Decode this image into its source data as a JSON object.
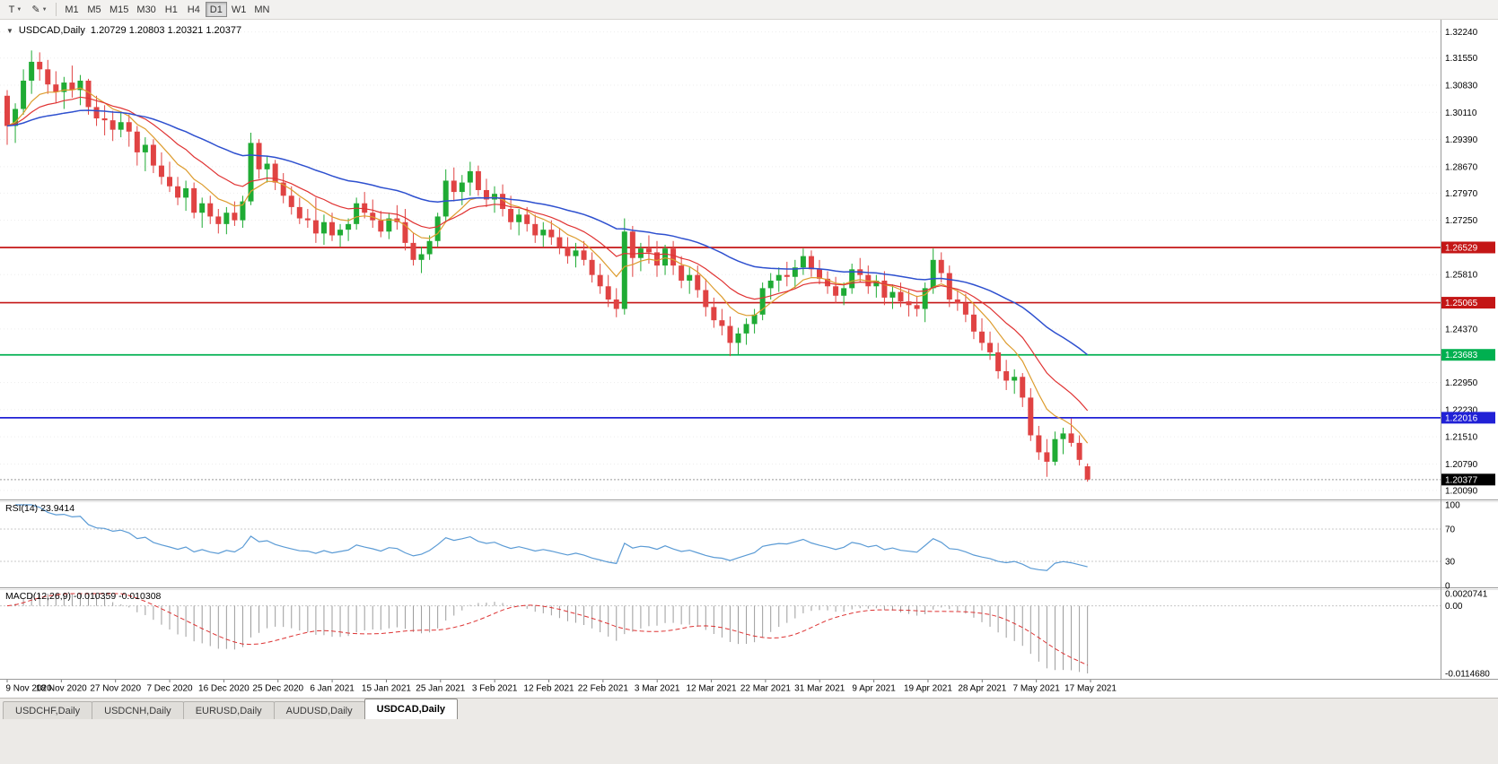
{
  "toolbar": {
    "tools": [
      {
        "name": "chart-type",
        "glyph": "T"
      },
      {
        "name": "drawing-tools",
        "glyph": "✎"
      }
    ],
    "timeframes": [
      "M1",
      "M5",
      "M15",
      "M30",
      "H1",
      "H4",
      "D1",
      "W1",
      "MN"
    ],
    "active_timeframe": "D1"
  },
  "chart_header": {
    "collapse_icon": "▼",
    "symbol_title": "USDCAD,Daily",
    "ohlc": "1.20729 1.20803 1.20321 1.20377"
  },
  "rsi_panel": {
    "label": "RSI(14)",
    "value": "23.9414",
    "period": 14,
    "levels": [
      70,
      30
    ],
    "axis_labels": [
      "100",
      "70",
      "30",
      "0"
    ],
    "line_color": "#5b9bd5"
  },
  "macd_panel": {
    "label": "MACD(12,26,9)",
    "values": "-0.010359 -0.010308",
    "params": [
      12,
      26,
      9
    ],
    "axis_top": "0.0020741",
    "axis_zero": "0.00",
    "axis_bottom": "-0.0114680",
    "histogram_color": "#9c9c9c",
    "signal_color": "#dd3333"
  },
  "price_axis": {
    "ticks": [
      {
        "label": "1.32240",
        "price": 1.3224
      },
      {
        "label": "1.31550",
        "price": 1.3155
      },
      {
        "label": "1.30830",
        "price": 1.3083
      },
      {
        "label": "1.30110",
        "price": 1.3011
      },
      {
        "label": "1.29390",
        "price": 1.2939
      },
      {
        "label": "1.28670",
        "price": 1.2867
      },
      {
        "label": "1.27970",
        "price": 1.2797
      },
      {
        "label": "1.27250",
        "price": 1.2725
      },
      {
        "label": "1.25810",
        "price": 1.2581
      },
      {
        "label": "1.24370",
        "price": 1.2437
      },
      {
        "label": "1.22950",
        "price": 1.2295
      },
      {
        "label": "1.22230",
        "price": 1.2223
      },
      {
        "label": "1.21510",
        "price": 1.2151
      },
      {
        "label": "1.20790",
        "price": 1.2079
      },
      {
        "label": "1.20090",
        "price": 1.2009
      }
    ],
    "badges": [
      {
        "label": "1.26529",
        "price": 1.26529,
        "color": "#c41616"
      },
      {
        "label": "1.25065",
        "price": 1.25065,
        "color": "#c41616"
      },
      {
        "label": "1.23683",
        "price": 1.23683,
        "color": "#00b050"
      },
      {
        "label": "1.22016",
        "price": 1.22016,
        "color": "#2121d6"
      }
    ],
    "current": {
      "label": "1.20377",
      "price": 1.20377,
      "color": "#000000"
    }
  },
  "date_axis": {
    "labels": [
      "9 Nov 2020",
      "18 Nov 2020",
      "27 Nov 2020",
      "7 Dec 2020",
      "16 Dec 2020",
      "25 Dec 2020",
      "6 Jan 2021",
      "15 Jan 2021",
      "25 Jan 2021",
      "3 Feb 2021",
      "12 Feb 2021",
      "22 Feb 2021",
      "3 Mar 2021",
      "12 Mar 2021",
      "22 Mar 2021",
      "31 Mar 2021",
      "9 Apr 2021",
      "19 Apr 2021",
      "28 Apr 2021",
      "7 May 2021",
      "17 May 2021"
    ]
  },
  "tab_bar": {
    "tabs": [
      {
        "label": "USDCHF,Daily",
        "active": false
      },
      {
        "label": "USDCNH,Daily",
        "active": false
      },
      {
        "label": "EURUSD,Daily",
        "active": false
      },
      {
        "label": "AUDUSD,Daily",
        "active": false
      },
      {
        "label": "USDCAD,Daily",
        "active": true
      }
    ]
  },
  "chart_data": {
    "type": "candlestick",
    "symbol": "USDCAD",
    "timeframe": "Daily",
    "title": "USDCAD,Daily",
    "ohlc_display": {
      "open": "1.20729",
      "high": "1.20803",
      "low": "1.20321",
      "close": "1.20377"
    },
    "ylim": [
      1.1985,
      1.3247
    ],
    "colors": {
      "up": "#1fab34",
      "down": "#e04343"
    },
    "current_price": 1.20377,
    "hlines": [
      {
        "price": 1.26529,
        "color": "#c41616"
      },
      {
        "price": 1.25065,
        "color": "#c41616"
      },
      {
        "price": 1.23683,
        "color": "#00b050"
      },
      {
        "price": 1.22016,
        "color": "#2121d6"
      }
    ],
    "moving_averages": [
      {
        "name": "ma-fast-orange",
        "period": 8,
        "color": "#dd9c2e",
        "width": 1.2
      },
      {
        "name": "ma-mid-red",
        "period": 16,
        "color": "#e03333",
        "width": 1.2
      },
      {
        "name": "ma-slow-blue",
        "period": 40,
        "color": "#2e50cf",
        "width": 1.5
      }
    ],
    "candles": [
      [
        1.3055,
        1.307,
        1.2925,
        1.2975
      ],
      [
        1.2975,
        1.3035,
        1.293,
        1.302
      ],
      [
        1.302,
        1.3125,
        1.3005,
        1.3095
      ],
      [
        1.3095,
        1.3175,
        1.306,
        1.3145
      ],
      [
        1.3145,
        1.317,
        1.3095,
        1.3125
      ],
      [
        1.3125,
        1.315,
        1.306,
        1.3085
      ],
      [
        1.3085,
        1.312,
        1.3035,
        1.3065
      ],
      [
        1.3065,
        1.3105,
        1.302,
        1.309
      ],
      [
        1.309,
        1.3135,
        1.305,
        1.307
      ],
      [
        1.307,
        1.311,
        1.303,
        1.3095
      ],
      [
        1.3095,
        1.31,
        1.3005,
        1.3025
      ],
      [
        1.3025,
        1.3055,
        1.2975,
        1.2995
      ],
      [
        1.2995,
        1.303,
        1.295,
        1.299
      ],
      [
        1.299,
        1.3015,
        1.2935,
        1.2965
      ],
      [
        1.2965,
        1.301,
        1.2945,
        1.2985
      ],
      [
        1.2985,
        1.3005,
        1.292,
        1.296
      ],
      [
        1.296,
        1.2975,
        1.287,
        1.2905
      ],
      [
        1.2905,
        1.2945,
        1.2855,
        1.2925
      ],
      [
        1.2925,
        1.294,
        1.285,
        1.287
      ],
      [
        1.287,
        1.2905,
        1.282,
        1.284
      ],
      [
        1.284,
        1.288,
        1.28,
        1.2815
      ],
      [
        1.2815,
        1.284,
        1.2765,
        1.2785
      ],
      [
        1.2785,
        1.283,
        1.275,
        1.281
      ],
      [
        1.281,
        1.2825,
        1.273,
        1.2745
      ],
      [
        1.2745,
        1.2785,
        1.2705,
        1.277
      ],
      [
        1.277,
        1.279,
        1.2715,
        1.2735
      ],
      [
        1.2735,
        1.2755,
        1.269,
        1.2715
      ],
      [
        1.2715,
        1.276,
        1.2688,
        1.2745
      ],
      [
        1.2745,
        1.2775,
        1.271,
        1.2725
      ],
      [
        1.2725,
        1.279,
        1.2705,
        1.2775
      ],
      [
        1.2775,
        1.2957,
        1.2765,
        1.293
      ],
      [
        1.293,
        1.294,
        1.2835,
        1.286
      ],
      [
        1.286,
        1.2895,
        1.2825,
        1.2875
      ],
      [
        1.2875,
        1.2885,
        1.2805,
        1.2825
      ],
      [
        1.2825,
        1.285,
        1.277,
        1.279
      ],
      [
        1.279,
        1.2815,
        1.274,
        1.276
      ],
      [
        1.276,
        1.2785,
        1.2715,
        1.273
      ],
      [
        1.273,
        1.2755,
        1.2705,
        1.2725
      ],
      [
        1.2725,
        1.2785,
        1.2665,
        1.269
      ],
      [
        1.269,
        1.274,
        1.266,
        1.272
      ],
      [
        1.272,
        1.2745,
        1.267,
        1.2685
      ],
      [
        1.2685,
        1.2715,
        1.2655,
        1.27
      ],
      [
        1.27,
        1.273,
        1.267,
        1.2715
      ],
      [
        1.2715,
        1.2785,
        1.27,
        1.277
      ],
      [
        1.277,
        1.28,
        1.273,
        1.2745
      ],
      [
        1.2745,
        1.278,
        1.2705,
        1.2725
      ],
      [
        1.2725,
        1.275,
        1.268,
        1.2695
      ],
      [
        1.2695,
        1.2745,
        1.2675,
        1.273
      ],
      [
        1.273,
        1.2765,
        1.27,
        1.272
      ],
      [
        1.272,
        1.2755,
        1.2645,
        1.2665
      ],
      [
        1.2665,
        1.269,
        1.2605,
        1.262
      ],
      [
        1.262,
        1.2655,
        1.2585,
        1.2635
      ],
      [
        1.2635,
        1.2685,
        1.262,
        1.267
      ],
      [
        1.267,
        1.2745,
        1.2655,
        1.2735
      ],
      [
        1.2735,
        1.286,
        1.272,
        1.283
      ],
      [
        1.283,
        1.2865,
        1.2775,
        1.28
      ],
      [
        1.28,
        1.2845,
        1.2765,
        1.2825
      ],
      [
        1.2825,
        1.288,
        1.279,
        1.2855
      ],
      [
        1.2855,
        1.287,
        1.279,
        1.2805
      ],
      [
        1.2805,
        1.2835,
        1.276,
        1.278
      ],
      [
        1.278,
        1.2815,
        1.2745,
        1.2795
      ],
      [
        1.2795,
        1.282,
        1.2735,
        1.2755
      ],
      [
        1.2755,
        1.279,
        1.27,
        1.272
      ],
      [
        1.272,
        1.2755,
        1.2685,
        1.274
      ],
      [
        1.274,
        1.276,
        1.2695,
        1.2715
      ],
      [
        1.2715,
        1.274,
        1.2665,
        1.2685
      ],
      [
        1.2685,
        1.272,
        1.2655,
        1.27
      ],
      [
        1.27,
        1.2725,
        1.266,
        1.268
      ],
      [
        1.268,
        1.2705,
        1.2635,
        1.2655
      ],
      [
        1.2655,
        1.268,
        1.261,
        1.263
      ],
      [
        1.263,
        1.2665,
        1.26,
        1.2645
      ],
      [
        1.2645,
        1.267,
        1.2605,
        1.262
      ],
      [
        1.262,
        1.264,
        1.256,
        1.258
      ],
      [
        1.258,
        1.261,
        1.253,
        1.255
      ],
      [
        1.255,
        1.258,
        1.2495,
        1.2515
      ],
      [
        1.2515,
        1.2545,
        1.2468,
        1.249
      ],
      [
        1.249,
        1.273,
        1.2475,
        1.2695
      ],
      [
        1.2695,
        1.271,
        1.2575,
        1.2625
      ],
      [
        1.2625,
        1.2665,
        1.259,
        1.265
      ],
      [
        1.265,
        1.2685,
        1.261,
        1.264
      ],
      [
        1.264,
        1.267,
        1.2575,
        1.2605
      ],
      [
        1.2605,
        1.266,
        1.258,
        1.265
      ],
      [
        1.265,
        1.267,
        1.258,
        1.2605
      ],
      [
        1.2605,
        1.263,
        1.2545,
        1.2565
      ],
      [
        1.2565,
        1.26,
        1.253,
        1.258
      ],
      [
        1.258,
        1.2605,
        1.252,
        1.254
      ],
      [
        1.254,
        1.257,
        1.247,
        1.2495
      ],
      [
        1.2495,
        1.252,
        1.244,
        1.246
      ],
      [
        1.246,
        1.249,
        1.242,
        1.2445
      ],
      [
        1.2445,
        1.247,
        1.2365,
        1.24
      ],
      [
        1.24,
        1.244,
        1.237,
        1.2425
      ],
      [
        1.2425,
        1.2465,
        1.2395,
        1.245
      ],
      [
        1.245,
        1.249,
        1.2425,
        1.2475
      ],
      [
        1.2475,
        1.256,
        1.246,
        1.2545
      ],
      [
        1.2545,
        1.2585,
        1.2515,
        1.2565
      ],
      [
        1.2565,
        1.26,
        1.2535,
        1.258
      ],
      [
        1.258,
        1.2615,
        1.255,
        1.2575
      ],
      [
        1.2575,
        1.262,
        1.2545,
        1.26
      ],
      [
        1.26,
        1.265,
        1.258,
        1.263
      ],
      [
        1.263,
        1.2645,
        1.2575,
        1.2595
      ],
      [
        1.2595,
        1.262,
        1.2555,
        1.257
      ],
      [
        1.257,
        1.259,
        1.253,
        1.255
      ],
      [
        1.255,
        1.2575,
        1.2505,
        1.2525
      ],
      [
        1.2525,
        1.256,
        1.25,
        1.2545
      ],
      [
        1.2545,
        1.261,
        1.253,
        1.2595
      ],
      [
        1.2595,
        1.2625,
        1.256,
        1.258
      ],
      [
        1.258,
        1.2605,
        1.253,
        1.255
      ],
      [
        1.255,
        1.258,
        1.252,
        1.2565
      ],
      [
        1.2565,
        1.259,
        1.25,
        1.252
      ],
      [
        1.252,
        1.2555,
        1.249,
        1.2535
      ],
      [
        1.2535,
        1.256,
        1.2495,
        1.251
      ],
      [
        1.251,
        1.254,
        1.247,
        1.25
      ],
      [
        1.25,
        1.2525,
        1.247,
        1.249
      ],
      [
        1.249,
        1.256,
        1.2455,
        1.2545
      ],
      [
        1.2545,
        1.265,
        1.253,
        1.262
      ],
      [
        1.262,
        1.264,
        1.256,
        1.2585
      ],
      [
        1.2585,
        1.2605,
        1.2495,
        1.2515
      ],
      [
        1.2515,
        1.254,
        1.2485,
        1.2505
      ],
      [
        1.2505,
        1.253,
        1.2455,
        1.2475
      ],
      [
        1.2475,
        1.2505,
        1.241,
        1.243
      ],
      [
        1.243,
        1.2465,
        1.238,
        1.24
      ],
      [
        1.24,
        1.243,
        1.2355,
        1.2375
      ],
      [
        1.2375,
        1.24,
        1.2305,
        1.2325
      ],
      [
        1.2325,
        1.2355,
        1.2275,
        1.23
      ],
      [
        1.23,
        1.233,
        1.2265,
        1.231
      ],
      [
        1.231,
        1.232,
        1.223,
        1.2255
      ],
      [
        1.2255,
        1.228,
        1.214,
        1.2155
      ],
      [
        1.2155,
        1.218,
        1.209,
        1.211
      ],
      [
        1.211,
        1.2145,
        1.2045,
        1.2085
      ],
      [
        1.2085,
        1.2165,
        1.2075,
        1.2145
      ],
      [
        1.2145,
        1.2175,
        1.2105,
        1.216
      ],
      [
        1.216,
        1.22,
        1.2125,
        1.2135
      ],
      [
        1.2135,
        1.2155,
        1.2075,
        1.209
      ],
      [
        1.20729,
        1.20803,
        1.20321,
        1.20377
      ]
    ]
  }
}
